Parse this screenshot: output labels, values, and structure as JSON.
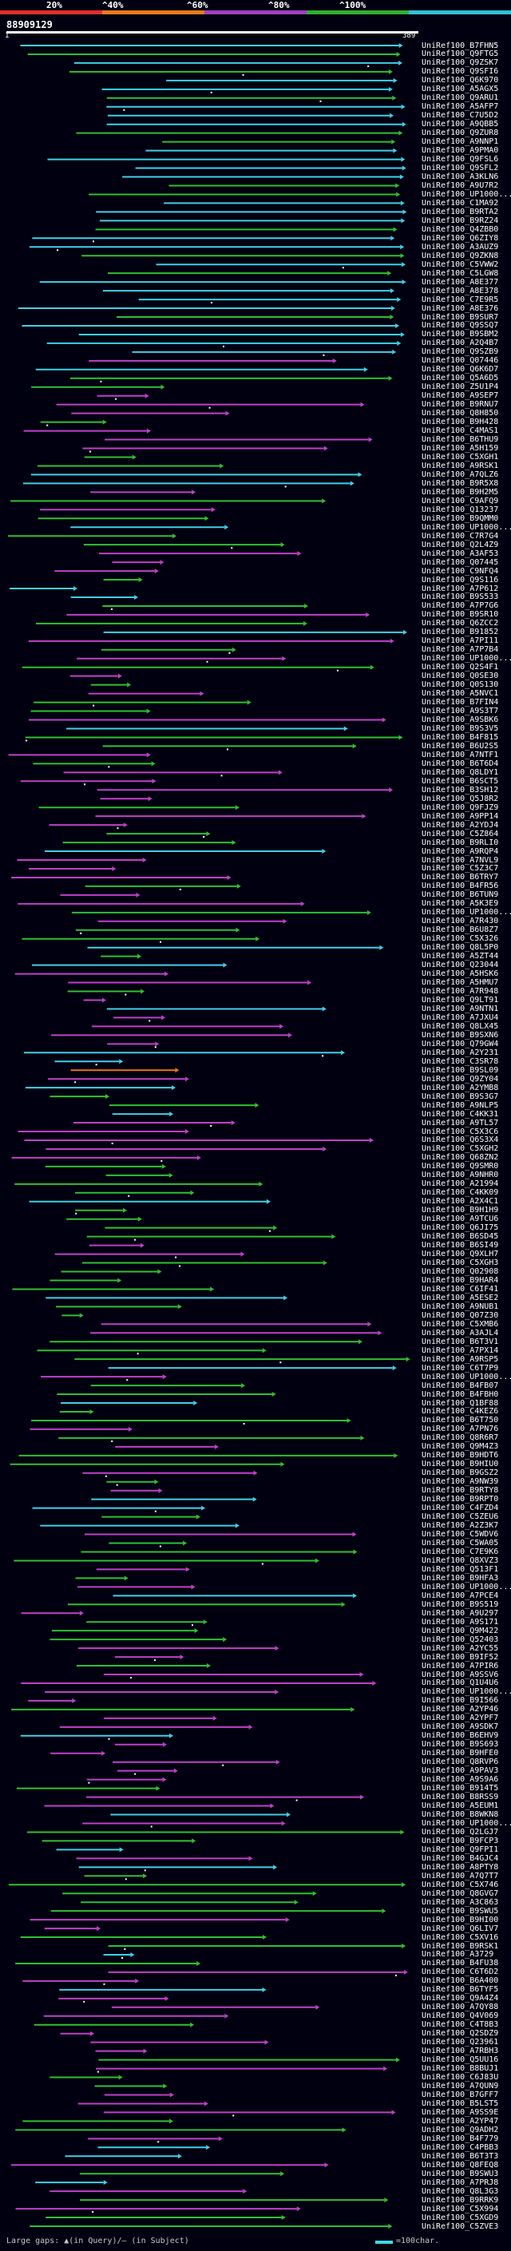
{
  "header": {
    "sequence_id": "88909129",
    "color_key": [
      {
        "label": "20%",
        "color": "#e0302e"
      },
      {
        "label": "^40%",
        "color": "#e87a1c"
      },
      {
        "label": "^60%",
        "color": "#a040c0"
      },
      {
        "label": "^80%",
        "color": "#30b030"
      },
      {
        "label": "^100%",
        "color": "#30c0d8"
      }
    ],
    "query_start": "1",
    "query_end": "389"
  },
  "colors": {
    "cyan": "#40d0e8",
    "green": "#30c030",
    "magenta": "#c040c8",
    "orange": "#e87818",
    "label": "#ffffff",
    "background": "#000010"
  },
  "hits": [
    "UniRef100_B7FHN5",
    "UniRef100_Q9FTG5",
    "UniRef100_Q9ZSK7",
    "UniRef100_Q9SFI6",
    "UniRef100_Q6K970",
    "UniRef100_A5AGX5",
    "UniRef100_Q9ARU1",
    "UniRef100_A5AFP7",
    "UniRef100_C7U5D2",
    "UniRef100_A9QBB5",
    "UniRef100_Q9ZUR8",
    "UniRef100_A9NNP1",
    "UniRef100_A9PMA0",
    "UniRef100_Q9FSL6",
    "UniRef100_Q9SFL2",
    "UniRef100_A3KLN6",
    "UniRef100_A9U7R2",
    "UniRef100_UP1000...",
    "UniRef100_C1MA92",
    "UniRef100_B9RTA2",
    "UniRef100_B9RZ24",
    "UniRef100_Q4ZBB0",
    "UniRef100_Q6ZIY8",
    "UniRef100_A3AUZ9",
    "UniRef100_Q9ZKN8",
    "UniRef100_C5VWW2",
    "UniRef100_C5LGW8",
    "UniRef100_A8E377",
    "UniRef100_A8E378",
    "UniRef100_C7E9R5",
    "UniRef100_A8E376",
    "UniRef100_B9SUR7",
    "UniRef100_Q9SSQ7",
    "UniRef100_B9SBM2",
    "UniRef100_A2Q4B7",
    "UniRef100_Q9SZB9",
    "UniRef100_Q07446",
    "UniRef100_Q6K6D7",
    "UniRef100_Q5A6D5",
    "UniRef100_Z5U1P4",
    "UniRef100_A9SEP7",
    "UniRef100_B9RNU7",
    "UniRef100_Q8H850",
    "UniRef100_B9H428",
    "UniRef100_C4MAS1",
    "UniRef100_B6THU9",
    "UniRef100_A5H159",
    "UniRef100_C5XGH1",
    "UniRef100_A9RSK1",
    "UniRef100_A7QLZ6",
    "UniRef100_B9R5X8",
    "UniRef100_B9H2M5",
    "UniRef100_C9AFQ9",
    "UniRef100_Q13237",
    "UniRef100_B9QMM0",
    "UniRef100_UP1000...",
    "UniRef100_C7R7G4",
    "UniRef100_Q2L4Z9",
    "UniRef100_A3AF53",
    "UniRef100_Q07445",
    "UniRef100_C9NFQ4",
    "UniRef100_Q9S116",
    "UniRef100_A7P612",
    "UniRef100_B9S533",
    "UniRef100_A7P7G6",
    "UniRef100_B9SR10",
    "UniRef100_Q6ZCC2",
    "UniRef100_B91852",
    "UniRef100_A7PI11",
    "UniRef100_A7P7B4",
    "UniRef100_UP1000...",
    "UniRef100_Q2S4F1",
    "UniRef100_Q0SE30",
    "UniRef100_Q0S130",
    "UniRef100_A5NVC1",
    "UniRef100_B7FIN4",
    "UniRef100_A9S3T7",
    "UniRef100_A9SBK6",
    "UniRef100_B9S3V5",
    "UniRef100_B4F815",
    "UniRef100_B6U2S5",
    "UniRef100_A7NTF1",
    "UniRef100_B6T6D4",
    "UniRef100_Q8LDY1",
    "UniRef100_B6SCT5",
    "UniRef100_B3SH12",
    "UniRef100_Q5J8R2",
    "UniRef100_Q9FJZ9",
    "UniRef100_A9PP14",
    "UniRef100_A2YDJ4",
    "UniRef100_C5Z864",
    "UniRef100_B9RLI0",
    "UniRef100_A9RQP4",
    "UniRef100_A7NVL9",
    "UniRef100_C5Z3C7",
    "UniRef100_B6TRY7",
    "UniRef100_B4FR56",
    "UniRef100_B6TUN9",
    "UniRef100_A5K3E9",
    "UniRef100_UP1000...",
    "UniRef100_A7R430",
    "UniRef100_B6U8Z7",
    "UniRef100_C5X326",
    "UniRef100_Q8L5P0",
    "UniRef100_A5ZT44",
    "UniRef100_Q23044",
    "UniRef100_A5HSK6",
    "UniRef100_A5HMU7",
    "UniRef100_A7R948",
    "UniRef100_Q9LT91",
    "UniRef100_A9NTN1",
    "UniRef100_A7JXU4",
    "UniRef100_Q8LX45",
    "UniRef100_B9SXN6",
    "UniRef100_Q79GW4",
    "UniRef100_A2Y231",
    "UniRef100_C3SR78",
    "UniRef100_B9SL09",
    "UniRef100_Q9ZY04",
    "UniRef100_A2YMB8",
    "UniRef100_B9S3G7",
    "UniRef100_A9NLP5",
    "UniRef100_C4KK31",
    "UniRef100_A9TL57",
    "UniRef100_C5X3C6",
    "UniRef100_Q6S3X4",
    "UniRef100_C5XGH2",
    "UniRef100_Q68ZN2",
    "UniRef100_Q9SMR0",
    "UniRef100_A9NHR0",
    "UniRef100_A21994",
    "UniRef100_C4KK09",
    "UniRef100_A2X4C1",
    "UniRef100_B9H1H9",
    "UniRef100_A9TCU6",
    "UniRef100_Q6JI75",
    "UniRef100_B6SD45",
    "UniRef100_B6SI49",
    "UniRef100_Q9XLH7",
    "UniRef100_C5XGH3",
    "UniRef100_Q02908",
    "UniRef100_B9HAR4",
    "UniRef100_C6IF41",
    "UniRef100_A5ESE2",
    "UniRef100_A9NUB1",
    "UniRef100_Q07Z30",
    "UniRef100_C5XMB6",
    "UniRef100_A3AJL4",
    "UniRef100_B6T3V1",
    "UniRef100_A7PX14",
    "UniRef100_A9RSP5",
    "UniRef100_C6T7P9",
    "UniRef100_UP1000...",
    "UniRef100_B4FB07",
    "UniRef100_B4FBH0",
    "UniRef100_Q1BF88",
    "UniRef100_C4KEZ6",
    "UniRef100_B6T750",
    "UniRef100_A7PN76",
    "UniRef100_Q8R6R7",
    "UniRef100_Q9M4Z3",
    "UniRef100_B9HDT6",
    "UniRef100_B9HIU0",
    "UniRef100_B9GSZ2",
    "UniRef100_A9NW39",
    "UniRef100_B9RTY8",
    "UniRef100_B9RPT0",
    "UniRef100_C4FZD4",
    "UniRef100_C5ZEU6",
    "UniRef100_A2Z3K7",
    "UniRef100_C5WDV6",
    "UniRef100_C5WA05",
    "UniRef100_C7E9K6",
    "UniRef100_Q8XVZ3",
    "UniRef100_Q513F1",
    "UniRef100_B9HFA3",
    "UniRef100_UP1000...",
    "UniRef100_A7PCE4",
    "UniRef100_B9S519",
    "UniRef100_A9U297",
    "UniRef100_A9S171",
    "UniRef100_Q9M422",
    "UniRef100_Q52403",
    "UniRef100_A2YC55",
    "UniRef100_B9IF52",
    "UniRef100_A7PIR6",
    "UniRef100_A9SSV6",
    "UniRef100_Q1U4U6",
    "UniRef100_UP1000...",
    "UniRef100_B9I566",
    "UniRef100_A2YP46",
    "UniRef100_A2YPF7",
    "UniRef100_A9SDK7",
    "UniRef100_B6EHV9",
    "UniRef100_B9S693",
    "UniRef100_B9HFE0",
    "UniRef100_Q8RVP6",
    "UniRef100_A9PAV3",
    "UniRef100_A9S9A6",
    "UniRef100_B914T5",
    "UniRef100_B8RSS9",
    "UniRef100_A5EUM1",
    "UniRef100_B8WKN8",
    "UniRef100_UP1000...",
    "UniRef100_Q2LGJ7",
    "UniRef100_B9FCP3",
    "UniRef100_Q9FPI1",
    "UniRef100_B4GJC4",
    "UniRef100_A8PTY8",
    "UniRef100_A7Q7T7",
    "UniRef100_C5X746",
    "UniRef100_Q8GVG7",
    "UniRef100_A3C863",
    "UniRef100_B9SWU5",
    "UniRef100_B9HI00",
    "UniRef100_Q6LIV7",
    "UniRef100_C5XV16",
    "UniRef100_B9RSK1",
    "UniRef100_A3729",
    "UniRef100_B4FU38",
    "UniRef100_C6T6D2",
    "UniRef100_B6A400",
    "UniRef100_B6TYF5",
    "UniRef100_Q9A4Z4",
    "UniRef100_A7QY88",
    "UniRef100_Q4V069",
    "UniRef100_C4T8B3",
    "UniRef100_Q2SDZ9",
    "UniRef100_Q23961",
    "UniRef100_A7RBH3",
    "UniRef100_Q5UU16",
    "UniRef100_B8BUJ1",
    "UniRef100_C6J83U",
    "UniRef100_A7QUN9",
    "UniRef100_B7GFF7",
    "UniRef100_B5LST5",
    "UniRef100_A9SS9E",
    "UniRef100_A2YP47",
    "UniRef100_Q9ADH2",
    "UniRef100_B4F779",
    "UniRef100_C4PBB3",
    "UniRef100_B6T3T3",
    "UniRef100_Q8FEQ8",
    "UniRef100_B9SWU3",
    "UniRef100_A7PRJ8",
    "UniRef100_Q8L3G3",
    "UniRef100_B9RRK9",
    "UniRef100_C5X994",
    "UniRef100_C5XGD9",
    "UniRef100_C5ZVE3"
  ],
  "footer": {
    "gaps_text": "Large gaps: ▲(in Query)/— (in Subject)",
    "scale_text": "=100char."
  }
}
